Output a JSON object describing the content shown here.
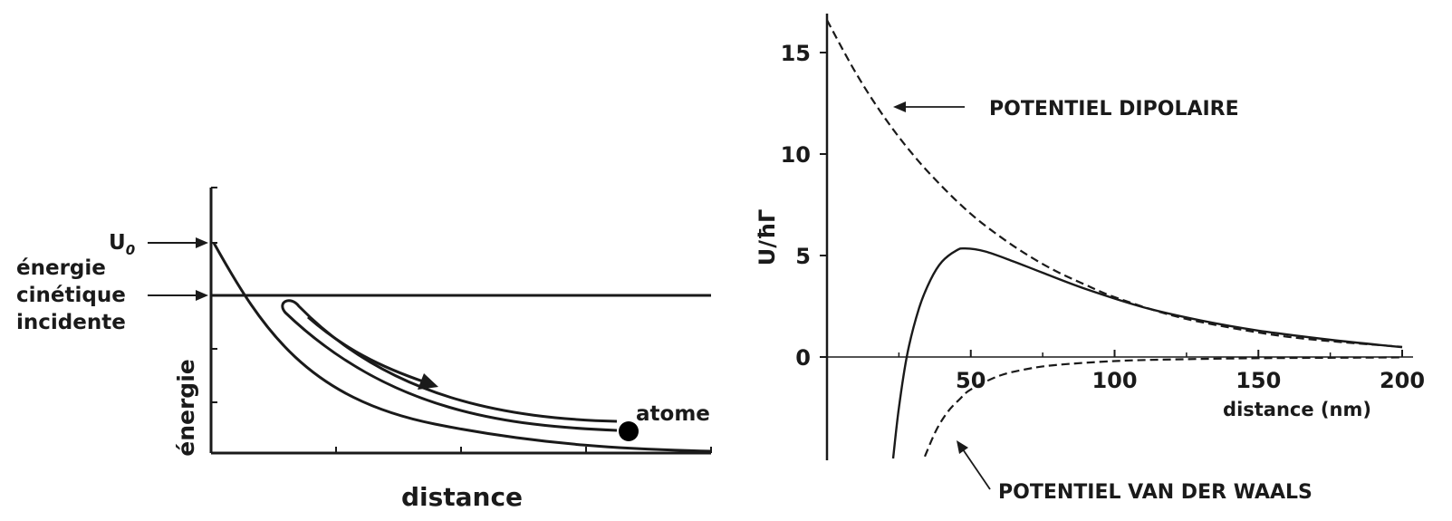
{
  "chart_data": [
    {
      "type": "line",
      "title": "",
      "xlabel": "distance",
      "ylabel": "énergie",
      "grid": false,
      "labels": {
        "u0": "U",
        "u0_sub": "0",
        "kinetic_line1": "énergie",
        "kinetic_line2": "cinétique",
        "kinetic_line3": "incidente",
        "atom": "atome"
      },
      "curve": "exponentially decaying potential barrier",
      "kinetic_level": "horizontal line below U0"
    },
    {
      "type": "line",
      "title": "",
      "xlabel": "distance (nm)",
      "ylabel": "U/ħΓ",
      "xlim": [
        0,
        200
      ],
      "ylim": [
        -5,
        17
      ],
      "x_ticks": [
        50,
        100,
        150,
        200
      ],
      "y_ticks": [
        0,
        5,
        10,
        15
      ],
      "grid": false,
      "series": [
        {
          "name": "POTENTIEL DIPOLAIRE",
          "style": "dashed",
          "x": [
            0,
            10,
            20,
            30,
            40,
            50,
            60,
            70,
            80,
            90,
            100,
            120,
            140,
            160,
            180,
            200
          ],
          "y": [
            16.6,
            14.0,
            11.8,
            9.95,
            8.4,
            7.05,
            5.95,
            5.0,
            4.2,
            3.55,
            2.95,
            2.05,
            1.45,
            1.0,
            0.72,
            0.5
          ]
        },
        {
          "name": "POTENTIEL VAN DER WAALS",
          "style": "dashed",
          "x": [
            34,
            38,
            42,
            46,
            50,
            60,
            70,
            80,
            100,
            120,
            150,
            200
          ],
          "y": [
            -4.9,
            -3.6,
            -2.7,
            -2.1,
            -1.6,
            -0.92,
            -0.58,
            -0.39,
            -0.2,
            -0.12,
            -0.06,
            -0.02
          ]
        },
        {
          "name": "",
          "style": "solid",
          "x": [
            23,
            25,
            28,
            32,
            36,
            40,
            45,
            48,
            55,
            65,
            75,
            90,
            110,
            130,
            150,
            175,
            200
          ],
          "y": [
            -5,
            -2.5,
            0.2,
            2.4,
            3.8,
            4.7,
            5.25,
            5.35,
            5.2,
            4.7,
            4.15,
            3.35,
            2.45,
            1.8,
            1.3,
            0.85,
            0.48
          ]
        }
      ]
    }
  ]
}
